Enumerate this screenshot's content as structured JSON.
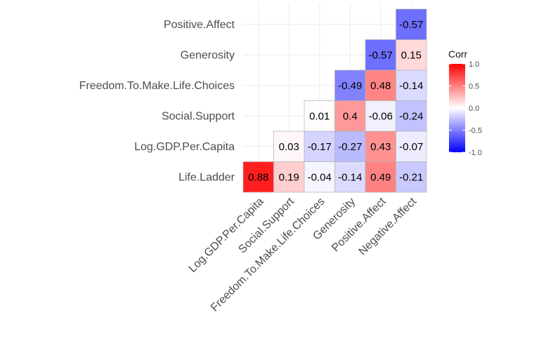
{
  "chart_data": {
    "type": "heatmap",
    "columns": [
      "Log.GDP.Per.Capita",
      "Social.Support",
      "Freedom.To.Make.Life.Choices",
      "Generosity",
      "Positive.Affect",
      "Negative.Affect"
    ],
    "rows": [
      "Life.Ladder",
      "Log.GDP.Per.Capita",
      "Social.Support",
      "Freedom.To.Make.Life.Choices",
      "Generosity",
      "Positive.Affect"
    ],
    "values": [
      [
        0.88,
        0.19,
        -0.04,
        -0.14,
        0.49,
        -0.21
      ],
      [
        null,
        0.03,
        -0.17,
        -0.27,
        0.43,
        -0.07
      ],
      [
        null,
        null,
        0.01,
        0.4,
        -0.06,
        -0.24
      ],
      [
        null,
        null,
        null,
        -0.49,
        0.48,
        -0.14
      ],
      [
        null,
        null,
        null,
        null,
        -0.57,
        0.15
      ],
      [
        null,
        null,
        null,
        null,
        null,
        -0.57
      ]
    ],
    "labels": [
      [
        "0.88",
        "0.19",
        "-0.04",
        "-0.14",
        "0.49",
        "-0.21"
      ],
      [
        null,
        "0.03",
        "-0.17",
        "-0.27",
        "0.43",
        "-0.07"
      ],
      [
        null,
        null,
        "0.01",
        "0.4",
        "-0.06",
        "-0.24"
      ],
      [
        null,
        null,
        null,
        "-0.49",
        "0.48",
        "-0.14"
      ],
      [
        null,
        null,
        null,
        null,
        "-0.57",
        "0.15"
      ],
      [
        null,
        null,
        null,
        null,
        null,
        "-0.57"
      ]
    ],
    "legend": {
      "title": "Corr",
      "placement": "right",
      "range": [
        -1,
        1
      ],
      "ticks": [
        1,
        0.5,
        0,
        -0.5,
        -1
      ],
      "tick_labels": [
        "1.0",
        "0.5",
        "0.0",
        "-0.5",
        "-1.0"
      ],
      "colors": {
        "low": "#0000ff",
        "mid": "#ffffff",
        "high": "#ff0000"
      }
    },
    "grid": true,
    "colors": {
      "background": "#ffffff",
      "grid": "#ebebeb",
      "cell_border": "#b3b3b3"
    }
  }
}
